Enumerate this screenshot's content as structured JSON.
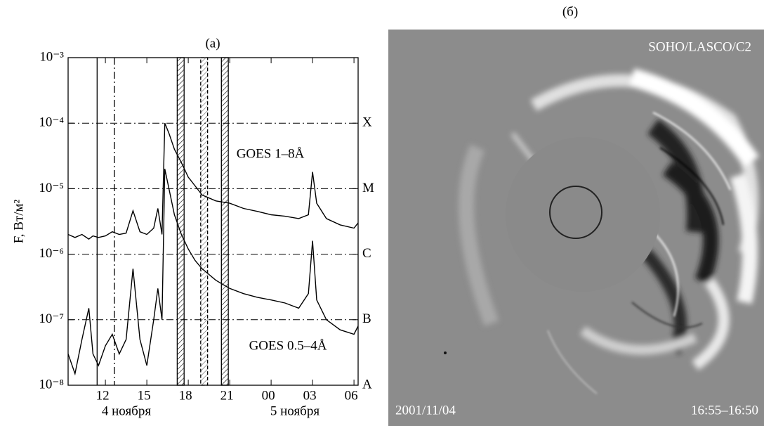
{
  "chart_data": {
    "type": "line",
    "title": "(a)",
    "y_label": "F, Вт/м²",
    "log_y": true,
    "x": [
      9.3,
      9.8,
      10.3,
      10.8,
      11.1,
      11.5,
      12,
      12.5,
      13,
      13.5,
      14,
      14.5,
      15,
      15.5,
      15.8,
      16.1,
      16.3,
      16.6,
      17,
      17.5,
      18,
      18.5,
      19,
      20,
      21,
      22,
      23,
      24,
      25,
      26,
      26.7,
      27,
      27.3,
      28,
      29,
      30,
      30.3
    ],
    "series": [
      {
        "name": "GOES 1–8Å",
        "color": "#000000",
        "values": [
          2e-06,
          1.8e-06,
          2e-06,
          1.7e-06,
          1.9e-06,
          1.8e-06,
          1.9e-06,
          2.2e-06,
          2e-06,
          2.1e-06,
          4.6e-06,
          2.2e-06,
          2e-06,
          2.5e-06,
          5e-06,
          2e-06,
          0.0001,
          7e-05,
          4e-05,
          2.5e-05,
          1.5e-05,
          1.1e-05,
          8e-06,
          6.5e-06,
          6e-06,
          5e-06,
          4.5e-06,
          4e-06,
          3.8e-06,
          3.5e-06,
          4e-06,
          1.8e-05,
          6e-06,
          3.5e-06,
          2.8e-06,
          2.5e-06,
          3e-06
        ]
      },
      {
        "name": "GOES 0.5–4Å",
        "color": "#000000",
        "values": [
          3e-08,
          1.5e-08,
          5e-08,
          1.5e-07,
          3e-08,
          2e-08,
          4e-08,
          6e-08,
          3e-08,
          5e-08,
          6e-07,
          5e-08,
          2e-08,
          1e-07,
          3e-07,
          1e-07,
          2e-05,
          1e-05,
          4e-06,
          2e-06,
          1.2e-06,
          8e-07,
          6e-07,
          4e-07,
          3e-07,
          2.5e-07,
          2.2e-07,
          2e-07,
          1.8e-07,
          1.5e-07,
          2.5e-07,
          1.6e-06,
          2e-07,
          1e-07,
          7e-08,
          6e-08,
          8e-08
        ]
      }
    ],
    "xlim": [
      9.3,
      30.3
    ],
    "xticks": [
      12,
      15,
      18,
      21,
      {
        "value": 24,
        "label": "00"
      },
      {
        "value": 27,
        "label": "03"
      },
      {
        "value": 30,
        "label": "06"
      }
    ],
    "date_labels": [
      "4 ноября",
      "5 ноября"
    ],
    "ylim": [
      1e-08,
      0.001
    ],
    "yticks": [
      {
        "value": 1e-08,
        "label": "10⁻⁸"
      },
      {
        "value": 1e-07,
        "label": "10⁻⁷"
      },
      {
        "value": 1e-06,
        "label": "10⁻⁶"
      },
      {
        "value": 1e-05,
        "label": "10⁻⁵"
      },
      {
        "value": 0.0001,
        "label": "10⁻⁴"
      },
      {
        "value": 0.001,
        "label": "10⁻³"
      }
    ],
    "y2lim": [
      1e-08,
      0.001
    ],
    "y2ticks": [
      {
        "value": 1e-08,
        "label": "A"
      },
      {
        "value": 1e-07,
        "label": "B"
      },
      {
        "value": 1e-06,
        "label": "C"
      },
      {
        "value": 1e-05,
        "label": "M"
      },
      {
        "value": 0.0001,
        "label": "X"
      }
    ],
    "event_lines": [
      {
        "x": 11.4,
        "style": "solid"
      },
      {
        "x": 12.65,
        "style": "dashdot"
      }
    ],
    "intervals": [
      {
        "x": [
          17.2,
          17.7
        ],
        "style": "solid"
      },
      {
        "x": [
          18.9,
          19.4
        ],
        "style": "dashed"
      },
      {
        "x": [
          20.4,
          20.9
        ],
        "style": "solid"
      }
    ]
  },
  "image_panel": {
    "label": "(б)",
    "instrument": "SOHO/LASCO/C2",
    "date": "2001/11/04",
    "time": "16:55–16:50"
  }
}
